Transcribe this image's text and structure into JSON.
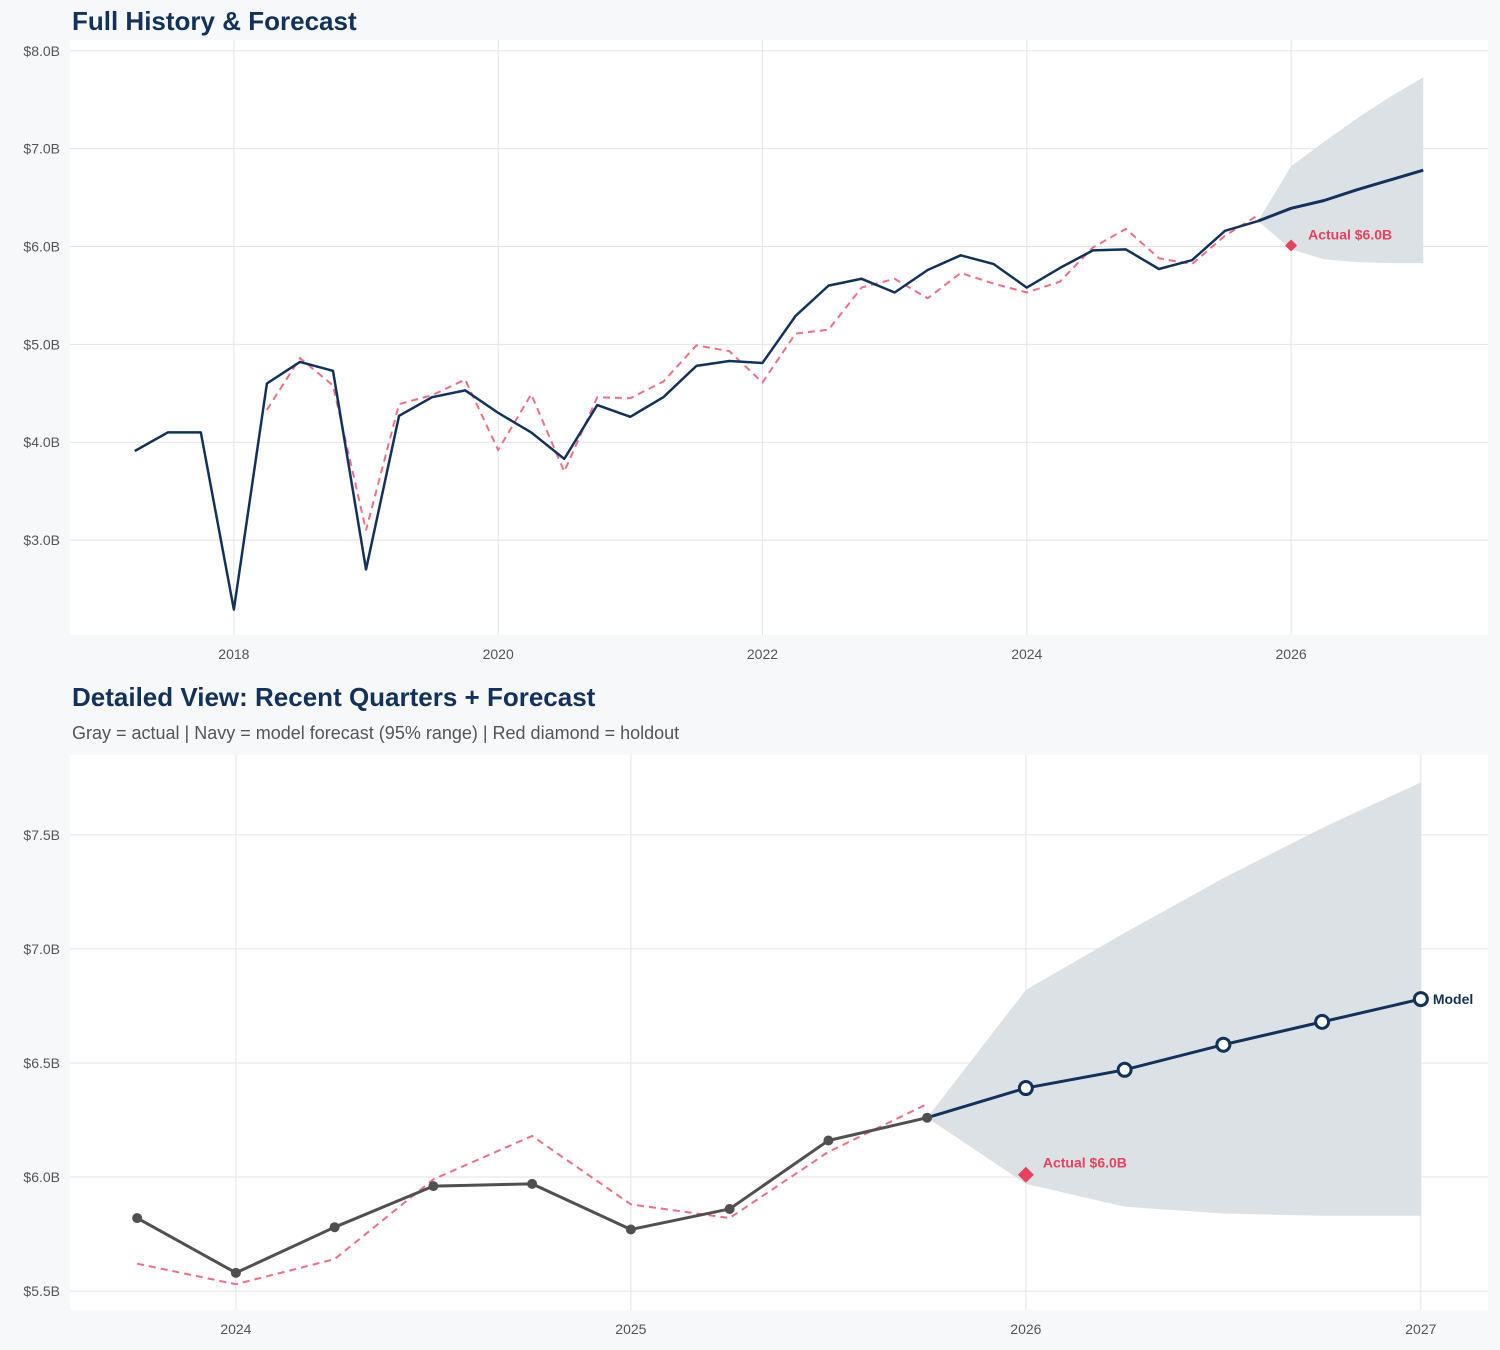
{
  "colors": {
    "navy": "#13325b",
    "gray": "#505050",
    "red_dashed": "#ec7085",
    "holdout": "#e5425f",
    "band": "#dadfe5"
  },
  "chart_data": [
    {
      "type": "line",
      "title": "Full History & Forecast",
      "xlim": [
        2016.76,
        2027.49
      ],
      "ylim": [
        2.03,
        8.11
      ],
      "x_ticks": [
        2018,
        2020,
        2022,
        2024,
        2026
      ],
      "x_tick_labels": [
        "2018",
        "2020",
        "2022",
        "2024",
        "2026"
      ],
      "y_ticks": [
        3,
        4,
        5,
        6,
        7,
        8
      ],
      "y_tick_labels": [
        "$3.0B",
        "$4.0B",
        "$5.0B",
        "$6.0B",
        "$7.0B",
        "$8.0B"
      ],
      "grid": true,
      "actual": {
        "x": [
          2017.25,
          2017.5,
          2017.75,
          2018,
          2018.25,
          2018.5,
          2018.75,
          2019,
          2019.25,
          2019.5,
          2019.75,
          2020,
          2020.25,
          2020.5,
          2020.75,
          2021,
          2021.25,
          2021.5,
          2021.75,
          2022,
          2022.25,
          2022.5,
          2022.75,
          2023,
          2023.25,
          2023.5,
          2023.75,
          2024,
          2024.25,
          2024.5,
          2024.75,
          2025,
          2025.25,
          2025.5,
          2025.75
        ],
        "y": [
          3.91,
          4.1,
          4.1,
          2.29,
          4.6,
          4.82,
          4.73,
          2.7,
          4.27,
          4.46,
          4.53,
          4.3,
          4.1,
          3.83,
          4.38,
          4.26,
          4.46,
          4.78,
          4.83,
          4.81,
          5.29,
          5.6,
          5.67,
          5.53,
          5.76,
          5.91,
          5.82,
          5.58,
          5.78,
          5.96,
          5.97,
          5.77,
          5.86,
          6.16,
          6.26
        ]
      },
      "fitted": {
        "x": [
          2018.25,
          2018.5,
          2018.75,
          2019,
          2019.25,
          2019.5,
          2019.75,
          2020,
          2020.25,
          2020.5,
          2020.75,
          2021,
          2021.25,
          2021.5,
          2021.75,
          2022,
          2022.25,
          2022.5,
          2022.75,
          2023,
          2023.25,
          2023.5,
          2023.75,
          2024,
          2024.25,
          2024.5,
          2024.75,
          2025,
          2025.25,
          2025.5,
          2025.75
        ],
        "y": [
          4.33,
          4.86,
          4.58,
          3.1,
          4.39,
          4.48,
          4.64,
          3.92,
          4.49,
          3.7,
          4.46,
          4.45,
          4.62,
          4.99,
          4.93,
          4.61,
          5.11,
          5.15,
          5.58,
          5.67,
          5.47,
          5.73,
          5.62,
          5.53,
          5.64,
          5.99,
          6.18,
          5.88,
          5.82,
          6.11,
          6.32
        ]
      },
      "forecast": {
        "x": [
          2025.75,
          2026,
          2026.25,
          2026.5,
          2026.75,
          2027
        ],
        "y": [
          6.26,
          6.39,
          6.47,
          6.58,
          6.68,
          6.78
        ],
        "upper": [
          6.26,
          6.82,
          7.07,
          7.31,
          7.53,
          7.73
        ],
        "lower": [
          6.26,
          5.97,
          5.87,
          5.84,
          5.83,
          5.83
        ]
      },
      "holdout": {
        "x": 2026,
        "y": 6.01,
        "label": "Actual $6.0B"
      }
    },
    {
      "type": "line",
      "title": "Detailed View: Recent Quarters + Forecast",
      "subtitle": "Gray = actual  |  Navy = model forecast (95% range)  |  Red diamond = holdout",
      "xlim": [
        2023.58,
        2027.17
      ],
      "ylim": [
        5.417,
        7.85
      ],
      "x_ticks": [
        2024,
        2025,
        2026,
        2027
      ],
      "x_tick_labels": [
        "2024",
        "2025",
        "2026",
        "2027"
      ],
      "y_ticks": [
        5.5,
        6.0,
        6.5,
        7.0,
        7.5
      ],
      "y_tick_labels": [
        "$5.5B",
        "$6.0B",
        "$6.5B",
        "$7.0B",
        "$7.5B"
      ],
      "grid": true,
      "actual": {
        "x": [
          2023.75,
          2024,
          2024.25,
          2024.5,
          2024.75,
          2025,
          2025.25,
          2025.5,
          2025.75
        ],
        "y": [
          5.82,
          5.58,
          5.78,
          5.96,
          5.97,
          5.77,
          5.86,
          6.16,
          6.26
        ]
      },
      "fitted": {
        "x": [
          2023.75,
          2024,
          2024.25,
          2024.5,
          2024.75,
          2025,
          2025.25,
          2025.5,
          2025.75
        ],
        "y": [
          5.62,
          5.53,
          5.64,
          5.99,
          6.18,
          5.88,
          5.82,
          6.11,
          6.32
        ]
      },
      "forecast": {
        "x": [
          2025.75,
          2026,
          2026.25,
          2026.5,
          2026.75,
          2027
        ],
        "y": [
          6.26,
          6.39,
          6.47,
          6.58,
          6.68,
          6.78
        ],
        "upper": [
          6.26,
          6.82,
          7.07,
          7.31,
          7.53,
          7.73
        ],
        "lower": [
          6.26,
          5.97,
          5.87,
          5.84,
          5.83,
          5.83
        ],
        "label": "Model"
      },
      "holdout": {
        "x": 2026,
        "y": 6.01,
        "label": "Actual $6.0B"
      }
    }
  ]
}
